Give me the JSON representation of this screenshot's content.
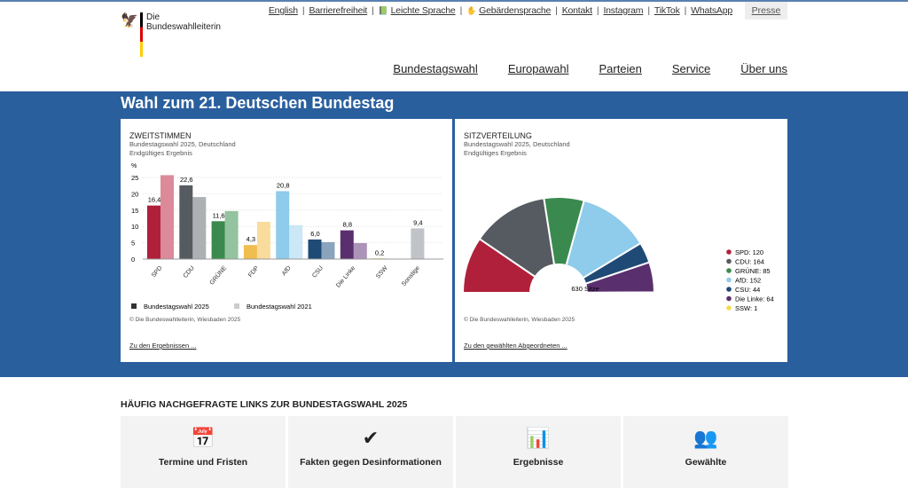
{
  "logo": {
    "line1": "Die",
    "line2": "Bundeswahlleiterin"
  },
  "meta_links": [
    "English",
    "Barrierefreiheit",
    "Leichte Sprache",
    "Gebärdensprache",
    "Kontakt",
    "Instagram",
    "TikTok",
    "WhatsApp"
  ],
  "presse": "Presse",
  "nav": [
    "Bundestagswahl",
    "Europawahl",
    "Parteien",
    "Service",
    "Über uns"
  ],
  "title": "Wahl zum 21. Deutschen Bundestag",
  "left": {
    "title": "ZWEITSTIMMEN",
    "sub1": "Bundestagswahl 2025, Deutschland",
    "sub2": "Endgültiges Ergebnis",
    "copy": "© Die Bundeswahlleiterin, Wiesbaden 2025",
    "link": "Zu den Ergebnissen ..."
  },
  "right": {
    "title": "SITZVERTEILUNG",
    "sub1": "Bundestagswahl 2025, Deutschland",
    "sub2": "Endgültiges Ergebnis",
    "copy": "© Die Bundeswahlleiterin, Wiesbaden 2025",
    "link": "Zu den gewählten Abgeordneten ..."
  },
  "chart_data": [
    {
      "type": "bar",
      "ylabel": "%",
      "ylim": [
        0,
        25
      ],
      "yticks": [
        0,
        5,
        10,
        15,
        20,
        25
      ],
      "categories": [
        "SPD",
        "CDU",
        "GRÜNE",
        "FDP",
        "AfD",
        "CSU",
        "Die Linke",
        "SSW",
        "Sonstige"
      ],
      "labels": [
        "16,4",
        "22,6",
        "11,6",
        "4,3",
        "20,8",
        "6,0",
        "8,8",
        "0,2",
        "9,4"
      ],
      "colors": [
        "#b0203b",
        "#555b60",
        "#3a8a4f",
        "#f0bd4f",
        "#8fcbea",
        "#1f4a75",
        "#5a2f6e",
        "#e8c93a",
        "#c0c3c7"
      ],
      "colors2021": [
        "#dc8a9a",
        "#aeb1b4",
        "#93c39f",
        "#f9dc9c",
        "#cce7f5",
        "#8ba4bd",
        "#ab94b8",
        "#f4e49a",
        "#dcdee0"
      ],
      "series": [
        {
          "name": "Bundestagswahl 2025",
          "values": [
            16.4,
            22.6,
            11.6,
            4.3,
            20.8,
            6.0,
            8.8,
            0.2,
            9.4
          ]
        },
        {
          "name": "Bundestagswahl 2021",
          "values": [
            25.7,
            19.0,
            14.7,
            11.4,
            10.4,
            5.2,
            4.9,
            0.1,
            null
          ]
        }
      ],
      "legend": [
        {
          "name": "Bundestagswahl 2025",
          "color": "#333333"
        },
        {
          "name": "Bundestagswahl 2021",
          "color": "#cccccc"
        }
      ]
    },
    {
      "type": "pie",
      "subtype": "semicircle",
      "center_label": "630 Sitze",
      "slices": [
        {
          "name": "SPD",
          "value": 120,
          "color": "#b0203b",
          "label": "SPD: 120"
        },
        {
          "name": "CDU",
          "value": 164,
          "color": "#555b60",
          "label": "CDU: 164"
        },
        {
          "name": "GRÜNE",
          "value": 85,
          "color": "#3a8a4f",
          "label": "GRÜNE: 85"
        },
        {
          "name": "AfD",
          "value": 152,
          "color": "#8fcbea",
          "label": "AfD: 152"
        },
        {
          "name": "CSU",
          "value": 44,
          "color": "#1f4a75",
          "label": "CSU: 44"
        },
        {
          "name": "Die Linke",
          "value": 64,
          "color": "#5a2f6e",
          "label": "Die Linke: 64"
        },
        {
          "name": "SSW",
          "value": 1,
          "color": "#f2dc4a",
          "label": "SSW: 1"
        }
      ]
    }
  ],
  "faq": {
    "heading": "HÄUFIG NACHGEFRAGTE LINKS ZUR BUNDESTAGSWAHL 2025",
    "tiles": [
      {
        "label": "Termine und Fristen",
        "icon": "📅"
      },
      {
        "label": "Fakten gegen Desinformationen",
        "icon": "✔"
      },
      {
        "label": "Ergebnisse",
        "icon": "📊"
      },
      {
        "label": "Gewählte",
        "icon": "👥"
      }
    ]
  }
}
